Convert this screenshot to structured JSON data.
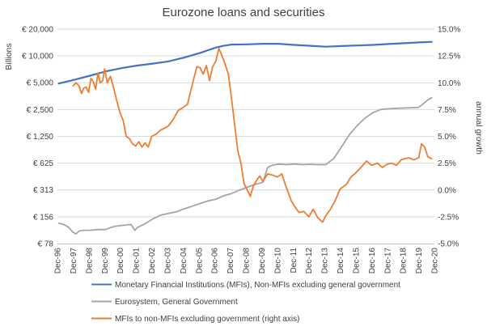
{
  "chart_data": {
    "type": "line",
    "title": "Eurozone loans and securities",
    "left_axis": {
      "label": "Billions",
      "scale": "log2",
      "range": [
        78,
        20000
      ],
      "ticks": [
        78,
        156,
        313,
        625,
        1250,
        2500,
        5000,
        10000,
        20000
      ],
      "tick_labels": [
        "€ 78",
        "€ 156",
        "€ 313",
        "€ 625",
        "€ 1,250",
        "€ 2,500",
        "€ 5,000",
        "€ 10,000",
        "€ 20,000"
      ]
    },
    "right_axis": {
      "label": "annual growth",
      "range": [
        -5,
        15
      ],
      "ticks": [
        -5,
        -2.5,
        0,
        2.5,
        5,
        7.5,
        10,
        12.5,
        15
      ],
      "tick_labels": [
        "-5.0%",
        "-2.5%",
        "0.0%",
        "2.5%",
        "5.0%",
        "7.5%",
        "10.0%",
        "12.5%",
        "15.0%"
      ]
    },
    "x_axis": {
      "range": [
        1996.92,
        2020.92
      ],
      "ticks": [
        1996.92,
        1997.92,
        1998.92,
        1999.92,
        2000.92,
        2001.92,
        2002.92,
        2003.92,
        2004.92,
        2005.92,
        2006.92,
        2007.92,
        2008.92,
        2009.92,
        2010.92,
        2011.92,
        2012.92,
        2013.92,
        2014.92,
        2015.92,
        2016.92,
        2017.92,
        2018.92,
        2019.92,
        2020.92
      ],
      "tick_labels": [
        "Dec-96",
        "Dec-97",
        "Dec-98",
        "Dec-99",
        "Dec-00",
        "Dec-01",
        "Dec-02",
        "Dec-03",
        "Dec-04",
        "Dec-05",
        "Dec-06",
        "Dec-07",
        "Dec-08",
        "Dec-09",
        "Dec-10",
        "Dec-11",
        "Dec-12",
        "Dec-13",
        "Dec-14",
        "Dec-15",
        "Dec-16",
        "Dec-17",
        "Dec-18",
        "Dec-19",
        "Dec-20"
      ]
    },
    "gridlines": true,
    "legend_position": "bottom",
    "series": [
      {
        "name": "Monetary Financial Institutions (MFIs), Non-MFIs excluding general government",
        "axis": "left",
        "color": "#4472C4",
        "x": [
          1997.0,
          1998.0,
          1999.0,
          2000.0,
          2001.0,
          2002.0,
          2003.0,
          2004.0,
          2005.0,
          2006.0,
          2007.0,
          2007.5,
          2008.0,
          2009.0,
          2010.0,
          2011.0,
          2012.0,
          2013.0,
          2014.0,
          2015.0,
          2016.0,
          2017.0,
          2018.0,
          2019.0,
          2019.92,
          2020.75
        ],
        "y": [
          4900,
          5400,
          6000,
          6700,
          7300,
          7800,
          8200,
          8700,
          9600,
          10800,
          12400,
          13000,
          13400,
          13500,
          13700,
          13700,
          13300,
          13000,
          12700,
          12900,
          13100,
          13300,
          13600,
          13900,
          14200,
          14400
        ]
      },
      {
        "name": "Eurosystem, General Government",
        "axis": "left",
        "color": "#A5A5A5",
        "x": [
          1997.0,
          1997.3,
          1997.6,
          1997.9,
          1998.1,
          1998.3,
          1998.6,
          1999.0,
          1999.5,
          2000.0,
          2000.3,
          2000.6,
          2000.9,
          2001.3,
          2001.6,
          2001.85,
          2002.0,
          2002.5,
          2003.0,
          2003.5,
          2004.0,
          2004.5,
          2005.0,
          2005.5,
          2006.0,
          2006.5,
          2007.0,
          2007.5,
          2008.0,
          2008.5,
          2009.0,
          2009.5,
          2010.0,
          2010.3,
          2010.6,
          2011.0,
          2011.5,
          2012.0,
          2012.5,
          2013.0,
          2013.5,
          2014.0,
          2014.5,
          2015.0,
          2015.5,
          2016.0,
          2016.5,
          2017.0,
          2017.5,
          2018.0,
          2018.5,
          2019.0,
          2019.5,
          2019.92,
          2020.2,
          2020.5,
          2020.75
        ],
        "y": [
          132,
          128,
          120,
          105,
          100,
          108,
          110,
          110,
          112,
          112,
          118,
          122,
          124,
          126,
          128,
          110,
          118,
          130,
          148,
          163,
          170,
          178,
          192,
          205,
          220,
          235,
          245,
          268,
          285,
          310,
          335,
          360,
          380,
          560,
          590,
          610,
          600,
          610,
          600,
          605,
          600,
          600,
          700,
          950,
          1300,
          1650,
          2000,
          2300,
          2500,
          2550,
          2580,
          2600,
          2620,
          2650,
          2900,
          3200,
          3400
        ]
      },
      {
        "name": "MFIs to non-MFIs excluding government (right axis)",
        "axis": "right",
        "color": "#ED7D31",
        "x": [
          1997.92,
          1998.1,
          1998.3,
          1998.45,
          1998.6,
          1998.75,
          1998.9,
          1999.05,
          1999.2,
          1999.35,
          1999.5,
          1999.65,
          1999.8,
          1999.92,
          2000.1,
          2000.3,
          2000.5,
          2000.7,
          2000.9,
          2001.1,
          2001.3,
          2001.5,
          2001.7,
          2001.9,
          2002.1,
          2002.3,
          2002.5,
          2002.7,
          2002.92,
          2003.2,
          2003.5,
          2003.8,
          2004.0,
          2004.3,
          2004.6,
          2004.92,
          2005.2,
          2005.5,
          2005.8,
          2006.0,
          2006.2,
          2006.4,
          2006.6,
          2006.8,
          2007.0,
          2007.2,
          2007.4,
          2007.6,
          2007.8,
          2008.0,
          2008.2,
          2008.4,
          2008.6,
          2008.8,
          2009.0,
          2009.2,
          2009.4,
          2009.6,
          2009.8,
          2010.0,
          2010.3,
          2010.6,
          2010.92,
          2011.2,
          2011.5,
          2011.8,
          2012.0,
          2012.3,
          2012.6,
          2012.92,
          2013.2,
          2013.5,
          2013.8,
          2014.0,
          2014.3,
          2014.6,
          2014.92,
          2015.3,
          2015.6,
          2015.92,
          2016.3,
          2016.6,
          2016.92,
          2017.3,
          2017.6,
          2017.92,
          2018.2,
          2018.5,
          2018.8,
          2019.0,
          2019.3,
          2019.6,
          2019.92,
          2020.1,
          2020.3,
          2020.5,
          2020.75
        ],
        "y": [
          9.7,
          10.0,
          9.7,
          9.0,
          9.5,
          9.6,
          9.1,
          10.4,
          10.1,
          9.4,
          10.9,
          10.0,
          10.2,
          11.3,
          10.0,
          10.6,
          9.5,
          8.3,
          7.2,
          6.5,
          5.0,
          4.8,
          4.3,
          4.1,
          4.5,
          4.0,
          4.4,
          4.0,
          5.0,
          5.2,
          5.6,
          5.8,
          6.0,
          6.6,
          7.4,
          7.7,
          8.0,
          9.8,
          11.5,
          11.4,
          10.8,
          11.6,
          10.2,
          11.5,
          12.0,
          13.2,
          12.5,
          11.7,
          10.8,
          8.6,
          6.1,
          3.7,
          2.5,
          0.6,
          0.0,
          -0.6,
          0.4,
          0.9,
          1.3,
          0.8,
          1.5,
          1.4,
          1.2,
          1.5,
          0.2,
          -1.0,
          -1.5,
          -2.1,
          -2.0,
          -2.5,
          -1.8,
          -2.6,
          -3.0,
          -2.4,
          -1.8,
          -1.0,
          0.1,
          0.5,
          1.2,
          1.6,
          2.2,
          2.7,
          2.3,
          2.5,
          2.1,
          2.4,
          2.5,
          2.3,
          2.8,
          2.9,
          3.0,
          2.8,
          3.0,
          4.3,
          4.0,
          3.1,
          2.9
        ]
      }
    ]
  }
}
